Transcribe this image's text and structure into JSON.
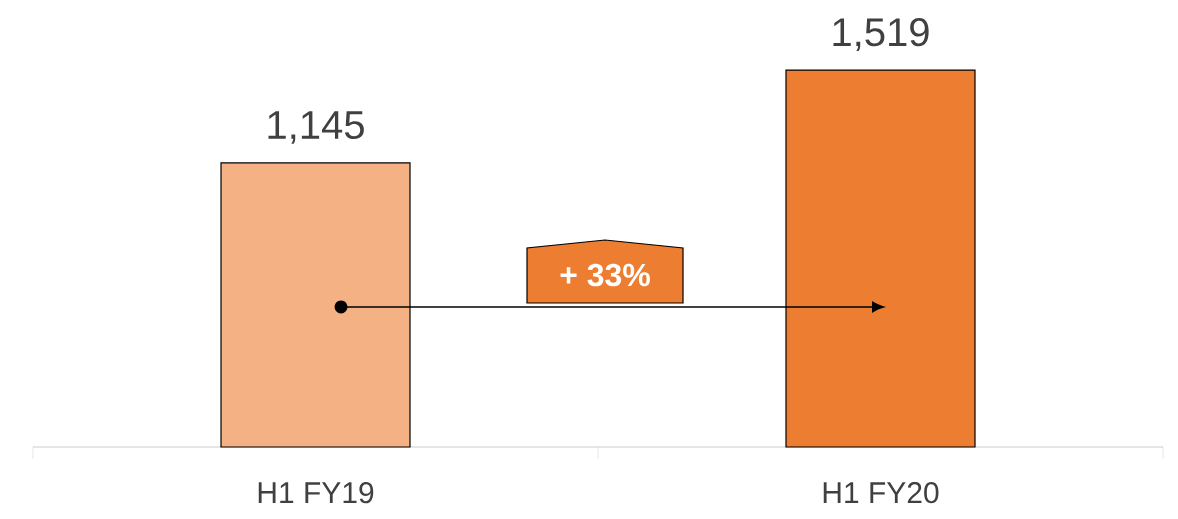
{
  "chart_data": {
    "type": "bar",
    "categories": [
      "H1 FY19",
      "H1 FY20"
    ],
    "values": [
      1145,
      1519
    ],
    "colors": [
      "#f4b183",
      "#ed7d31"
    ],
    "value_labels": [
      "1,145",
      "1,519"
    ],
    "annotations": [
      "+ 33%"
    ]
  }
}
